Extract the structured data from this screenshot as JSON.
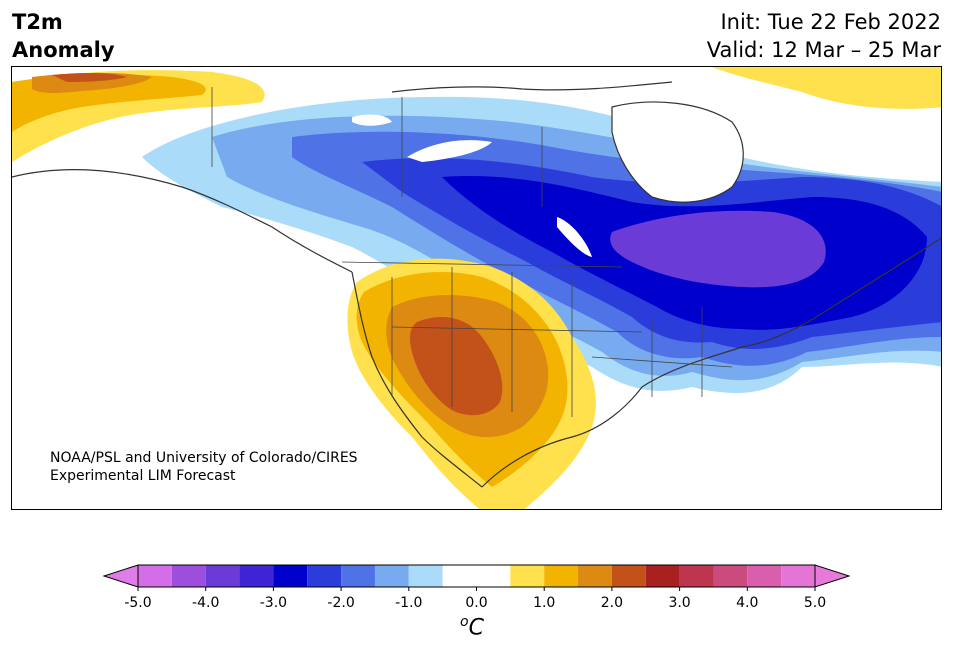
{
  "title": {
    "line1": "T2m",
    "line2": "Anomaly"
  },
  "dates": {
    "init": "Init: Tue 22 Feb 2022",
    "valid": "Valid: 12 Mar – 25 Mar"
  },
  "credit": {
    "line1": "NOAA/PSL and University of Colorado/CIRES",
    "line2": "Experimental LIM Forecast"
  },
  "colorbar": {
    "unit_sup": "o",
    "unit_main": "C",
    "ticks": [
      "-5.0",
      "-4.0",
      "-3.0",
      "-2.0",
      "-1.0",
      "0.0",
      "1.0",
      "2.0",
      "3.0",
      "4.0",
      "5.0"
    ],
    "bounds": [
      -5.0,
      -4.5,
      -4.0,
      -3.5,
      -3.0,
      -2.5,
      -2.0,
      -1.5,
      -1.0,
      -0.5,
      0.5,
      1.0,
      1.5,
      2.0,
      2.5,
      3.0,
      3.5,
      4.0,
      4.5,
      5.0
    ],
    "colors": [
      "#d46ee8",
      "#9b4fdc",
      "#6b3bd8",
      "#3f24d4",
      "#0000cd",
      "#2a3ddb",
      "#4f72e6",
      "#78aaf0",
      "#aadcfa",
      "#ffffff",
      "#ffe14d",
      "#f2b400",
      "#dc8a12",
      "#c2521a",
      "#a82020",
      "#be3550",
      "#cc4b7e",
      "#d95fae",
      "#e474d6"
    ],
    "under_color": "#e07ce8",
    "over_color": "#e77ad9"
  },
  "anomaly_colors": {
    "warm_1": "#ffe14d",
    "warm_2": "#f2b400",
    "warm_3": "#dc8a12",
    "warm_4": "#c2521a",
    "cold_1": "#aadcfa",
    "cold_2": "#78aaf0",
    "cold_3": "#4f72e6",
    "cold_4": "#2a3ddb",
    "cold_5": "#0000cd",
    "cold_6": "#6b3bd8"
  }
}
